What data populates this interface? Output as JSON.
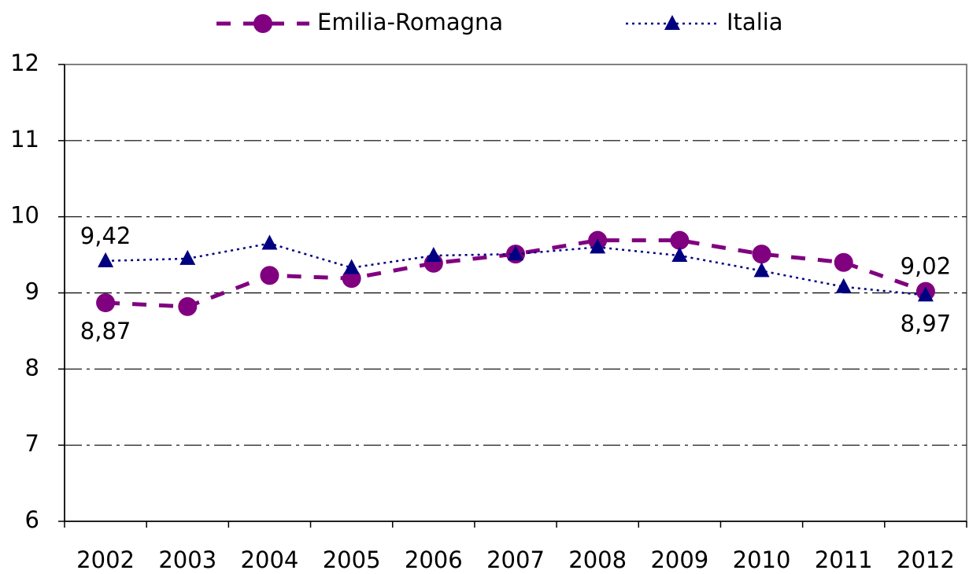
{
  "chart_data": {
    "type": "line",
    "categories": [
      "2002",
      "2003",
      "2004",
      "2005",
      "2006",
      "2007",
      "2008",
      "2009",
      "2010",
      "2011",
      "2012"
    ],
    "series": [
      {
        "name": "Emilia-Romagna",
        "color": "#800080",
        "values": [
          8.87,
          8.82,
          9.23,
          9.19,
          9.39,
          9.51,
          9.69,
          9.69,
          9.51,
          9.4,
          9.02
        ],
        "value_labels": [
          "8,87",
          null,
          null,
          null,
          null,
          null,
          null,
          null,
          null,
          null,
          "9,02"
        ]
      },
      {
        "name": "Italia",
        "color": "#000080",
        "values": [
          9.42,
          9.45,
          9.65,
          9.33,
          9.49,
          9.51,
          9.6,
          9.49,
          9.29,
          9.08,
          8.97
        ],
        "value_labels": [
          "9,42",
          null,
          null,
          null,
          null,
          null,
          null,
          null,
          null,
          null,
          "8,97"
        ]
      }
    ],
    "ylim": [
      6,
      12
    ],
    "yticks": [
      6,
      7,
      8,
      9,
      10,
      11,
      12
    ],
    "grid": true,
    "legend": "top"
  }
}
